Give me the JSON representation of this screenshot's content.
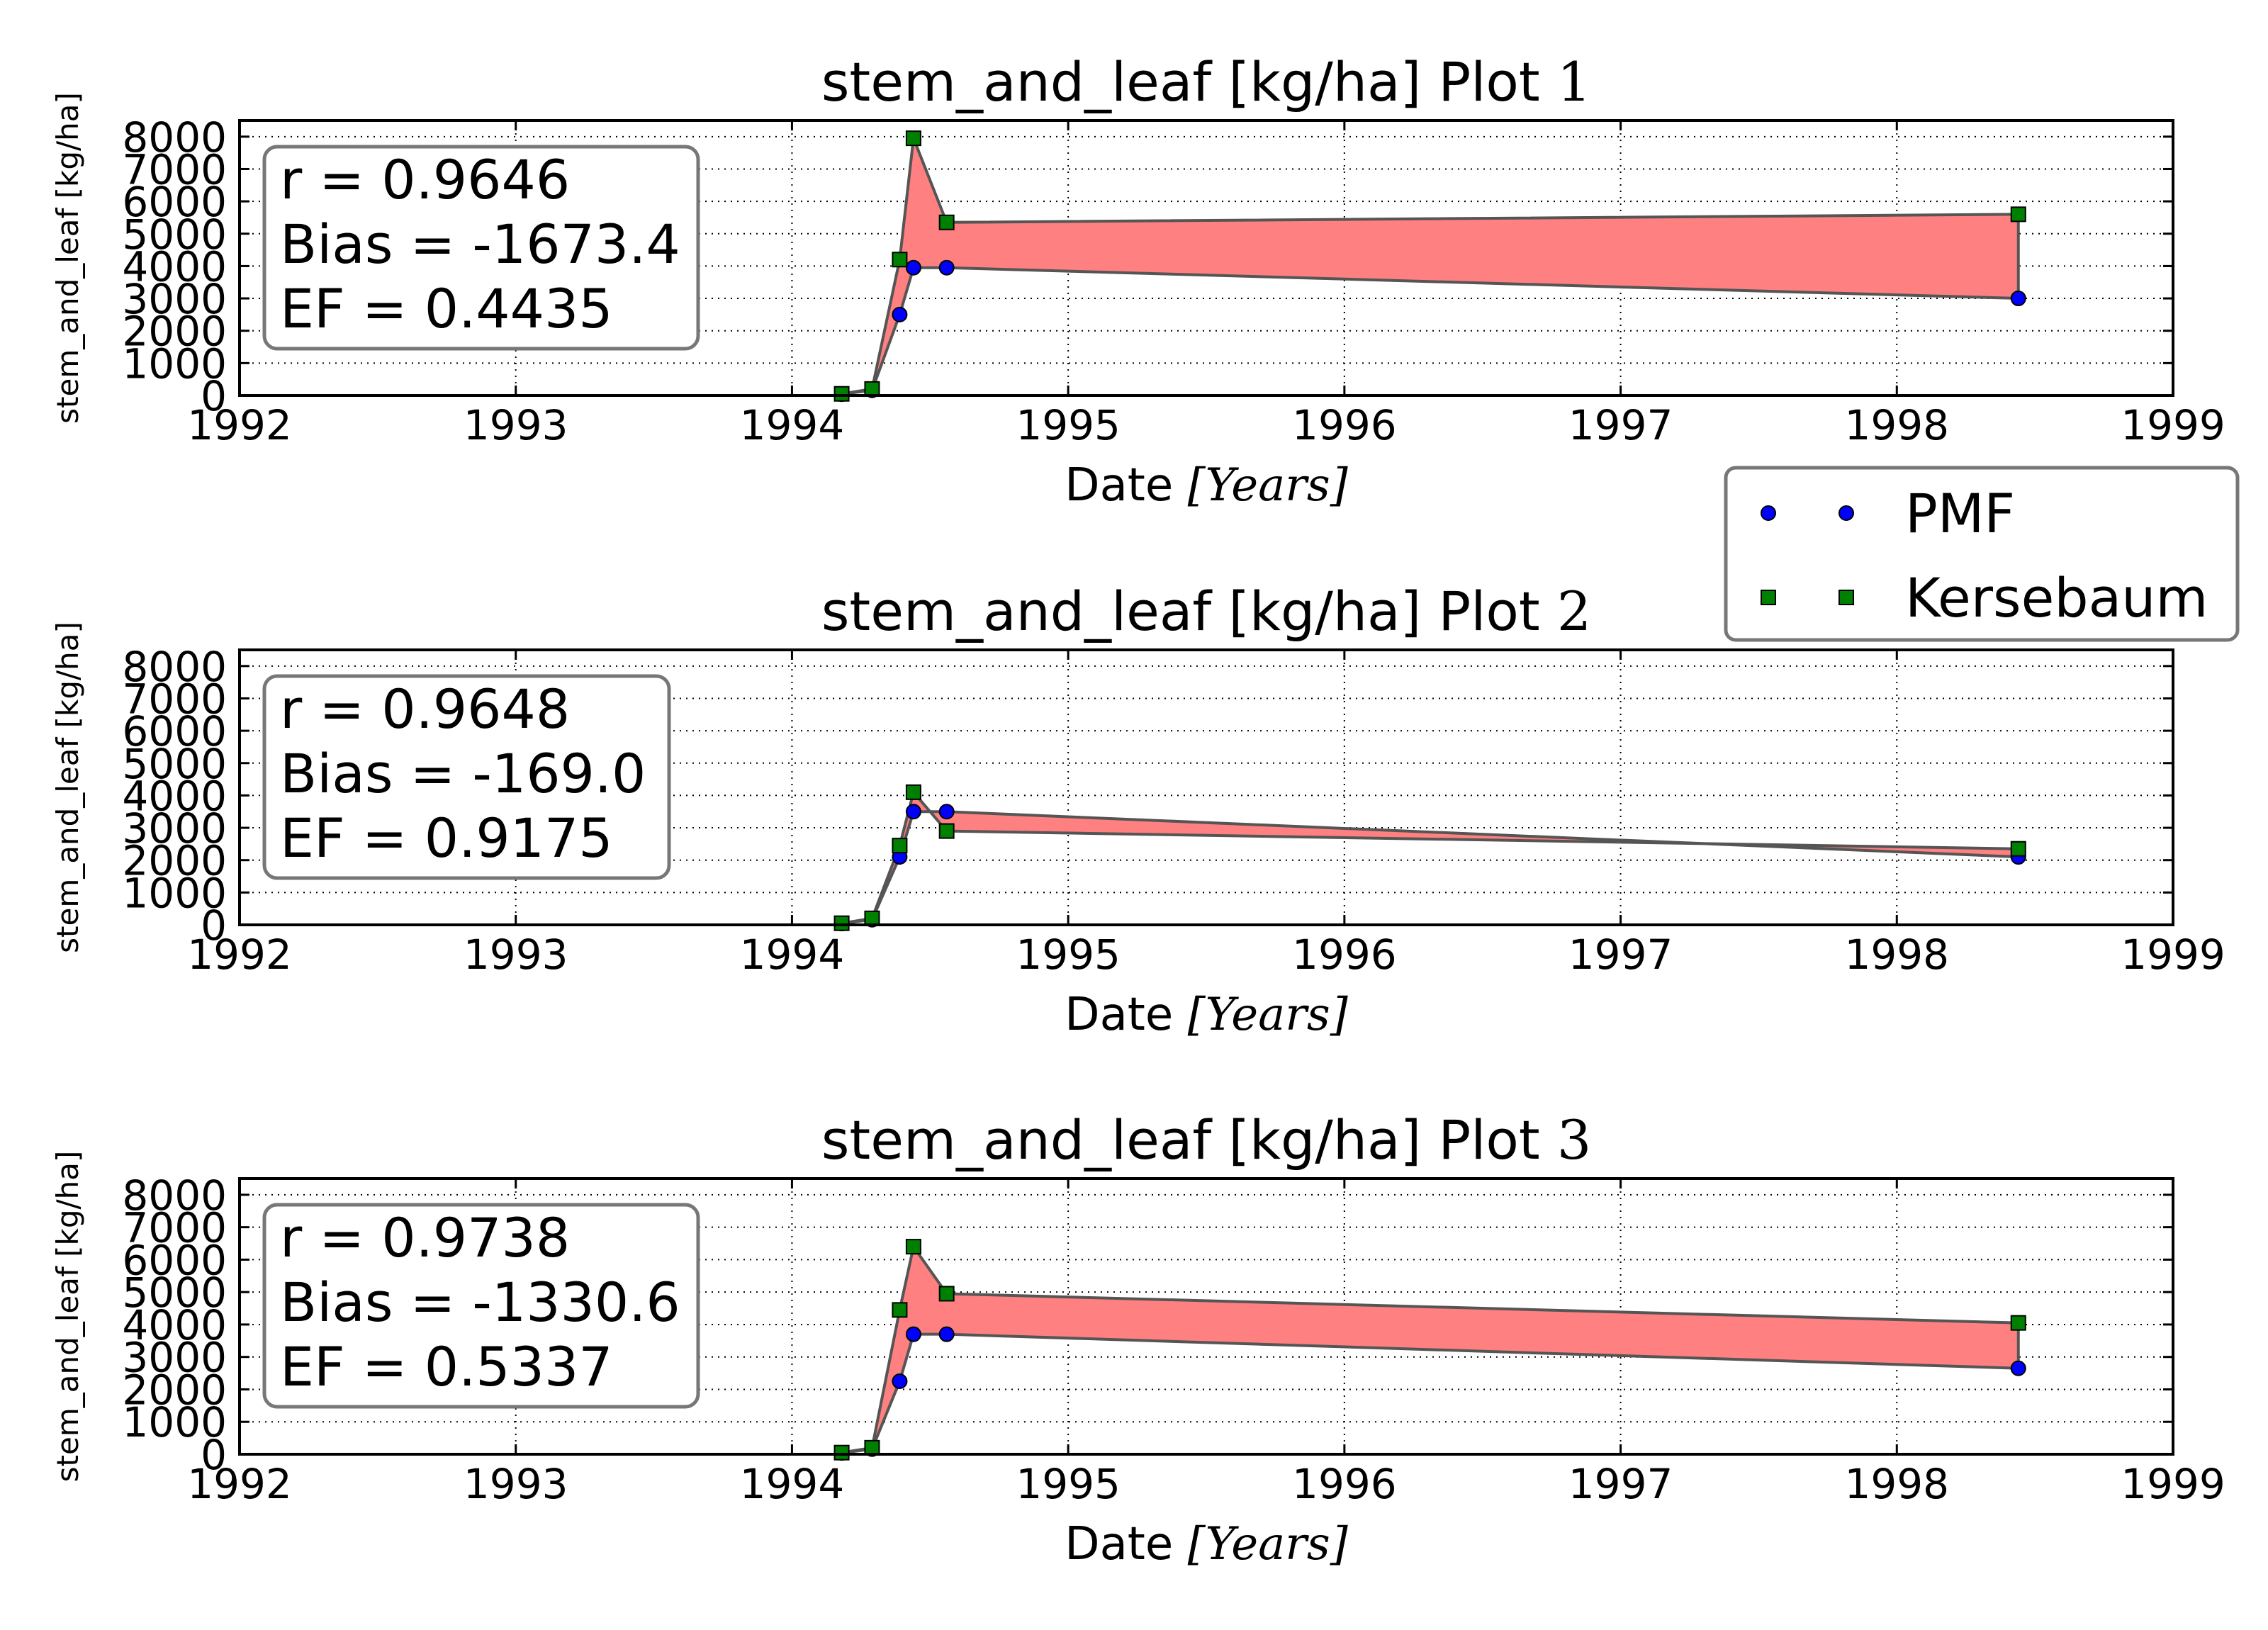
{
  "legend": {
    "placement": "right, between plot 1 and plot 2",
    "items": [
      {
        "label": "PMF",
        "marker": "circle",
        "color": "#0000ff"
      },
      {
        "label": "Kersebaum",
        "marker": "square",
        "color": "#008000"
      }
    ]
  },
  "colors": {
    "fill": "#ff8080",
    "pmf": "#0000ff",
    "kersebaum": "#008000"
  },
  "chart_data": [
    {
      "type": "line",
      "title_text": "stem_and_leaf [kg/ha] Plot ",
      "title_num": "1",
      "xlabel_text": "Date ",
      "xlabel_unit": "[Years]",
      "ylabel": "stem_and_leaf [kg/ha]",
      "xlim": [
        1992,
        1999
      ],
      "ylim": [
        0,
        8500
      ],
      "xticks": [
        "1992",
        "1993",
        "1994",
        "1995",
        "1996",
        "1997",
        "1998",
        "1999"
      ],
      "yticks": [
        "0",
        "1000",
        "2000",
        "3000",
        "4000",
        "5000",
        "6000",
        "7000",
        "8000"
      ],
      "grid": true,
      "stats": [
        "r = 0.9646",
        "Bias = -1673.4",
        "EF = 0.4435"
      ],
      "series": [
        {
          "name": "PMF",
          "x": [
            1994.18,
            1994.29,
            1994.39,
            1994.44,
            1994.56,
            1998.44
          ],
          "y": [
            40,
            160,
            2500,
            3950,
            3950,
            3000
          ]
        },
        {
          "name": "Kersebaum",
          "x": [
            1994.18,
            1994.29,
            1994.39,
            1994.44,
            1994.56,
            1998.44
          ],
          "y": [
            50,
            200,
            4200,
            7950,
            5350,
            5600
          ]
        }
      ]
    },
    {
      "type": "line",
      "title_text": "stem_and_leaf [kg/ha] Plot ",
      "title_num": "2",
      "xlabel_text": "Date ",
      "xlabel_unit": "[Years]",
      "ylabel": "stem_and_leaf [kg/ha]",
      "xlim": [
        1992,
        1999
      ],
      "ylim": [
        0,
        8500
      ],
      "xticks": [
        "1992",
        "1993",
        "1994",
        "1995",
        "1996",
        "1997",
        "1998",
        "1999"
      ],
      "yticks": [
        "0",
        "1000",
        "2000",
        "3000",
        "4000",
        "5000",
        "6000",
        "7000",
        "8000"
      ],
      "grid": true,
      "stats": [
        "r = 0.9648",
        "Bias = -169.0",
        "EF = 0.9175"
      ],
      "series": [
        {
          "name": "PMF",
          "x": [
            1994.18,
            1994.29,
            1994.39,
            1994.44,
            1994.56,
            1998.44
          ],
          "y": [
            40,
            160,
            2100,
            3500,
            3500,
            2100
          ]
        },
        {
          "name": "Kersebaum",
          "x": [
            1994.18,
            1994.29,
            1994.39,
            1994.44,
            1994.56,
            1998.44
          ],
          "y": [
            50,
            200,
            2450,
            4100,
            2900,
            2350
          ]
        }
      ]
    },
    {
      "type": "line",
      "title_text": "stem_and_leaf [kg/ha] Plot ",
      "title_num": "3",
      "xlabel_text": "Date ",
      "xlabel_unit": "[Years]",
      "ylabel": "stem_and_leaf [kg/ha]",
      "xlim": [
        1992,
        1999
      ],
      "ylim": [
        0,
        8500
      ],
      "xticks": [
        "1992",
        "1993",
        "1994",
        "1995",
        "1996",
        "1997",
        "1998",
        "1999"
      ],
      "yticks": [
        "0",
        "1000",
        "2000",
        "3000",
        "4000",
        "5000",
        "6000",
        "7000",
        "8000"
      ],
      "grid": true,
      "stats": [
        "r = 0.9738",
        "Bias = -1330.6",
        "EF = 0.5337"
      ],
      "series": [
        {
          "name": "PMF",
          "x": [
            1994.18,
            1994.29,
            1994.39,
            1994.44,
            1994.56,
            1998.44
          ],
          "y": [
            40,
            160,
            2250,
            3700,
            3700,
            2650
          ]
        },
        {
          "name": "Kersebaum",
          "x": [
            1994.18,
            1994.29,
            1994.39,
            1994.44,
            1994.56,
            1998.44
          ],
          "y": [
            50,
            200,
            4450,
            6400,
            4950,
            4050
          ]
        }
      ]
    }
  ]
}
